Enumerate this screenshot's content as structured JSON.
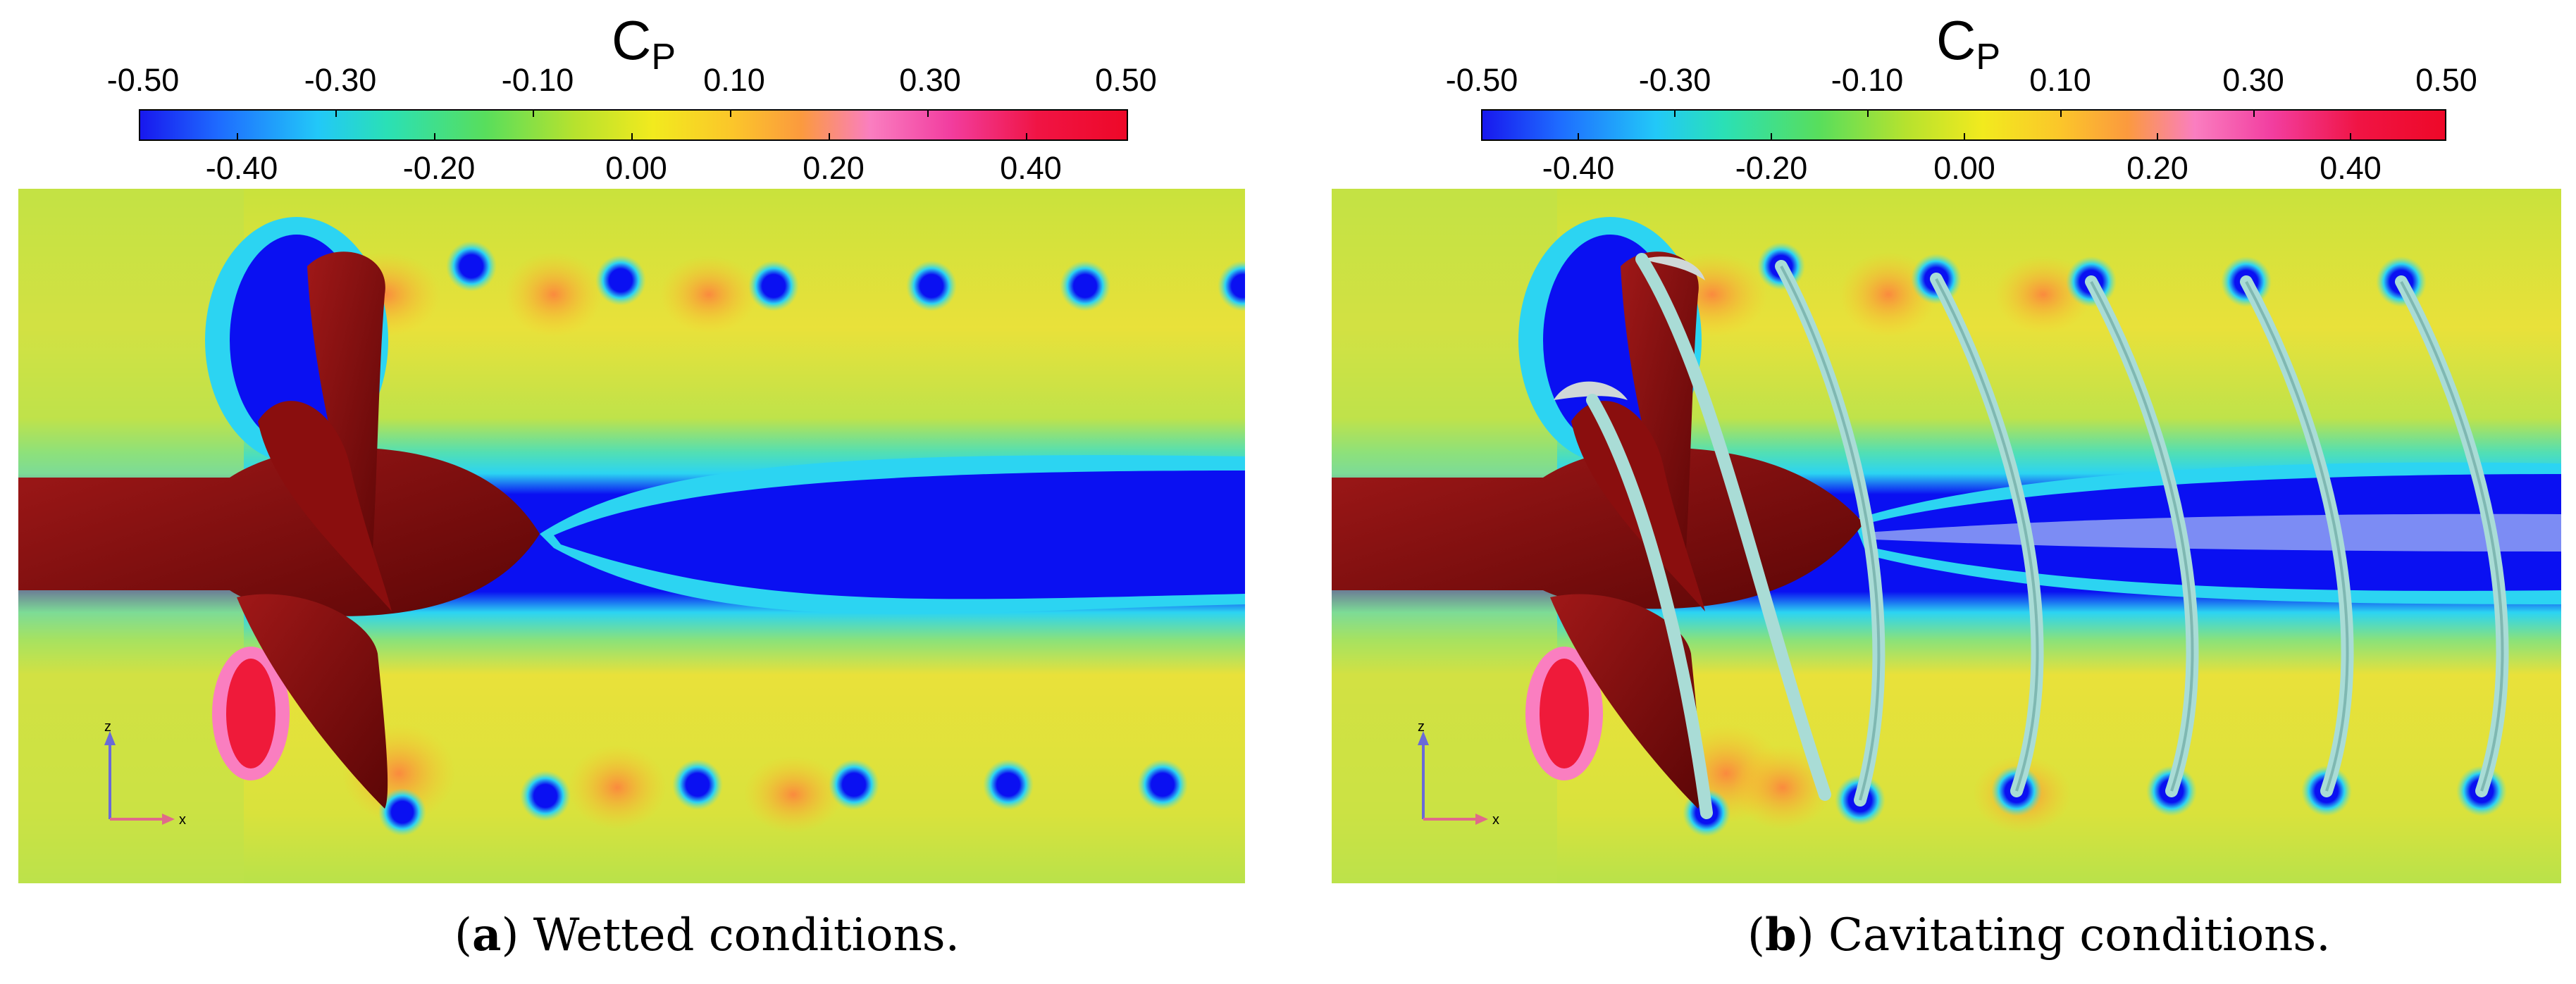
{
  "colorbar": {
    "title": "C",
    "title_subscript": "P",
    "ticks_top": [
      "-0.50",
      "-0.30",
      "-0.10",
      "0.10",
      "0.30",
      "0.50"
    ],
    "ticks_bottom": [
      "-0.40",
      "-0.20",
      "0.00",
      "0.20",
      "0.40"
    ],
    "range": [
      -0.5,
      0.5
    ]
  },
  "axes_indicator": {
    "vertical": "z",
    "horizontal": "x"
  },
  "panels": [
    {
      "id": "a",
      "label": "a",
      "caption": "Wetted conditions."
    },
    {
      "id": "b",
      "label": "b",
      "caption": "Cavitating conditions."
    }
  ],
  "colors": {
    "propeller": "#8a0e0e",
    "low_pressure": "#0a0ef2",
    "high_pressure": "#ef1a3a",
    "freestream": "#bfe24a",
    "cavity": "#a9dcd6"
  }
}
